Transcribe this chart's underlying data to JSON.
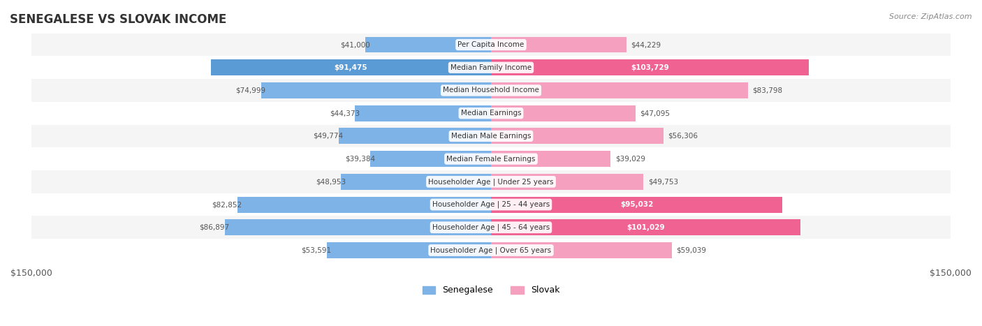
{
  "title": "SENEGALESE VS SLOVAK INCOME",
  "source": "Source: ZipAtlas.com",
  "categories": [
    "Per Capita Income",
    "Median Family Income",
    "Median Household Income",
    "Median Earnings",
    "Median Male Earnings",
    "Median Female Earnings",
    "Householder Age | Under 25 years",
    "Householder Age | 25 - 44 years",
    "Householder Age | 45 - 64 years",
    "Householder Age | Over 65 years"
  ],
  "senegalese": [
    41000,
    91475,
    74999,
    44373,
    49774,
    39384,
    48953,
    82852,
    86897,
    53591
  ],
  "slovak": [
    44229,
    103729,
    83798,
    47095,
    56306,
    39029,
    49753,
    95032,
    101029,
    59039
  ],
  "senegalese_labels": [
    "$41,000",
    "$91,475",
    "$74,999",
    "$44,373",
    "$49,774",
    "$39,384",
    "$48,953",
    "$82,852",
    "$86,897",
    "$53,591"
  ],
  "slovak_labels": [
    "$44,229",
    "$103,729",
    "$83,798",
    "$47,095",
    "$56,306",
    "$39,029",
    "$49,753",
    "$95,032",
    "$101,029",
    "$59,039"
  ],
  "color_senegalese": "#7EB3E8",
  "color_senegalese_strong": "#5B9BD5",
  "color_slovak": "#F4A0BE",
  "color_slovak_strong": "#F06292",
  "max_val": 150000,
  "bg_color": "#ffffff",
  "row_bg_even": "#f0f0f0",
  "row_bg_odd": "#ffffff"
}
